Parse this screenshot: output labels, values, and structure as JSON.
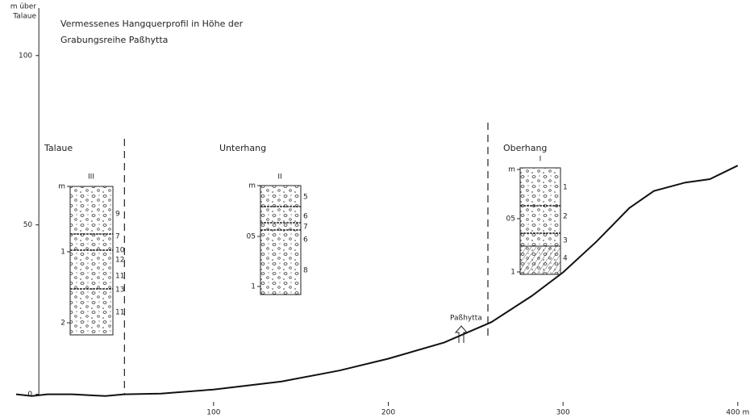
{
  "chart_data": {
    "type": "line",
    "title": [
      "Vermessenes Hangquerprofil in Höhe der",
      "Grabungsreihe Paßhytta"
    ],
    "y_label": [
      "m über",
      "Talaue"
    ],
    "x": [
      -13,
      -4,
      5,
      19,
      30,
      38,
      49,
      70,
      100,
      139,
      172,
      200,
      232,
      259,
      282,
      300,
      319,
      338,
      352,
      370,
      384,
      400
    ],
    "values": [
      0,
      -0.5,
      0,
      0,
      -0.3,
      -0.5,
      0,
      0.2,
      1.4,
      3.8,
      7,
      10.5,
      15.3,
      21.3,
      29,
      36,
      45,
      55,
      60,
      62.5,
      63.5,
      67.5
    ],
    "color": "#111111",
    "xlim": [
      -13,
      407
    ],
    "ylim": [
      -7,
      114
    ],
    "xticks": [
      100,
      200,
      300,
      {
        "value": 400,
        "label": "400 m"
      }
    ],
    "yticks": [
      0,
      50,
      100
    ],
    "boundaries": [
      49,
      257
    ],
    "regions": [
      "Talaue",
      "Unterhang",
      "Oberhang"
    ],
    "marker_label": "Paßhytta",
    "profiles": [
      {
        "label": "III",
        "depth_labels": [
          "m",
          "1",
          "2"
        ],
        "layer_labels": [
          "9",
          "7",
          "10",
          "12",
          "11",
          "13",
          "11"
        ]
      },
      {
        "label": "II",
        "depth_labels": [
          "m",
          "05",
          "1"
        ],
        "layer_labels": [
          "5",
          "6",
          "7",
          "6",
          "8"
        ]
      },
      {
        "label": "I",
        "depth_labels": [
          "m",
          "05",
          "1"
        ],
        "layer_labels": [
          "1",
          "2",
          "3",
          "4"
        ]
      }
    ]
  }
}
